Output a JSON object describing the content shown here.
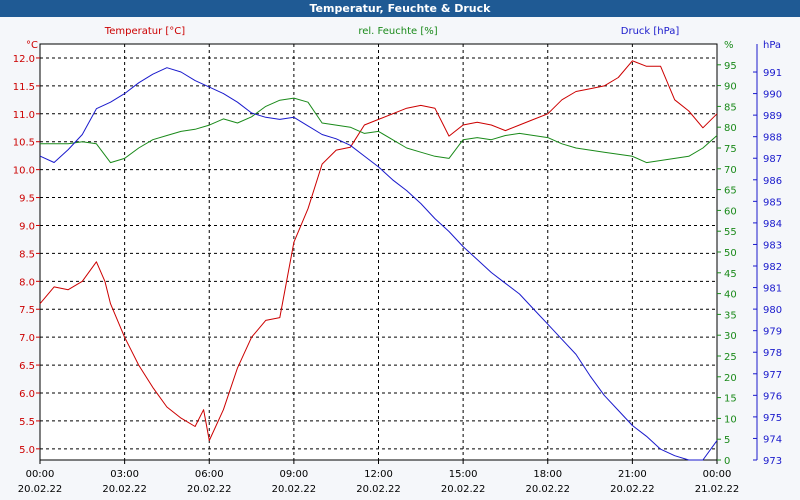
{
  "window": {
    "title": "Temperatur, Feuchte & Druck"
  },
  "colors": {
    "temperature": "#cc0000",
    "humidity": "#1a8a1a",
    "pressure": "#1a1acc",
    "grid": "#000000",
    "background": "#ffffff",
    "titlebar": "#1f5a94"
  },
  "chart_data": {
    "type": "line",
    "title": "Temperatur, Feuchte & Druck",
    "grid": true,
    "x_ticks": [
      {
        "time": "00:00",
        "date": "20.02.22"
      },
      {
        "time": "03:00",
        "date": "20.02.22"
      },
      {
        "time": "06:00",
        "date": "20.02.22"
      },
      {
        "time": "09:00",
        "date": "20.02.22"
      },
      {
        "time": "12:00",
        "date": "20.02.22"
      },
      {
        "time": "15:00",
        "date": "20.02.22"
      },
      {
        "time": "18:00",
        "date": "20.02.22"
      },
      {
        "time": "21:00",
        "date": "20.02.22"
      },
      {
        "time": "00:00",
        "date": "21.02.22"
      }
    ],
    "x_unit": "hours",
    "x_range": [
      0,
      24
    ],
    "axes": {
      "left": {
        "label": "Temperatur [°C]",
        "unit": "°C",
        "range": [
          4.8,
          12.25
        ],
        "ticks": [
          "5.0",
          "5.5",
          "6.0",
          "6.5",
          "7.0",
          "7.5",
          "8.0",
          "8.5",
          "9.0",
          "9.5",
          "10.0",
          "10.5",
          "11.0",
          "11.5",
          "12.0"
        ]
      },
      "middle": {
        "label": "rel. Feuchte [%]",
        "unit": "%",
        "range": [
          0,
          100
        ],
        "ticks": [
          "0",
          "5",
          "10",
          "15",
          "20",
          "25",
          "30",
          "35",
          "40",
          "45",
          "50",
          "55",
          "60",
          "65",
          "70",
          "75",
          "80",
          "85",
          "90",
          "95"
        ]
      },
      "right": {
        "label": "Druck [hPa]",
        "unit": "hPa",
        "range": [
          973,
          992.3
        ],
        "ticks": [
          "973",
          "974",
          "975",
          "976",
          "977",
          "978",
          "979",
          "980",
          "981",
          "982",
          "983",
          "984",
          "985",
          "986",
          "987",
          "988",
          "989",
          "990",
          "991"
        ]
      }
    },
    "series": [
      {
        "name": "Temperatur [°C]",
        "axis": "left",
        "x": [
          0,
          0.5,
          1,
          1.5,
          2,
          2.3,
          2.5,
          3,
          3.5,
          4,
          4.5,
          5,
          5.5,
          5.8,
          6,
          6.5,
          7,
          7.5,
          8,
          8.5,
          9,
          9.5,
          10,
          10.5,
          11,
          11.5,
          12,
          12.5,
          13,
          13.5,
          14,
          14.3,
          14.5,
          15,
          15.5,
          16,
          16.5,
          17,
          17.5,
          18,
          18.5,
          19,
          19.5,
          20,
          20.5,
          21,
          21.5,
          22,
          22.5,
          23,
          23.5,
          24
        ],
        "values": [
          7.6,
          7.9,
          7.85,
          8.0,
          8.35,
          8.0,
          7.6,
          7.0,
          6.5,
          6.1,
          5.75,
          5.55,
          5.4,
          5.7,
          5.15,
          5.7,
          6.45,
          7.0,
          7.3,
          7.35,
          8.7,
          9.3,
          10.1,
          10.35,
          10.4,
          10.8,
          10.9,
          11.0,
          11.1,
          11.15,
          11.1,
          10.8,
          10.6,
          10.8,
          10.85,
          10.8,
          10.7,
          10.8,
          10.9,
          11.0,
          11.25,
          11.4,
          11.45,
          11.5,
          11.65,
          11.95,
          11.85,
          11.85,
          11.25,
          11.05,
          10.75,
          11.0
        ]
      },
      {
        "name": "rel. Feuchte [%]",
        "axis": "middle",
        "x": [
          0,
          0.5,
          1,
          1.5,
          2,
          2.5,
          3,
          3.5,
          4,
          4.5,
          5,
          5.5,
          6,
          6.5,
          7,
          7.5,
          8,
          8.5,
          9,
          9.5,
          10,
          10.5,
          11,
          11.5,
          12,
          12.5,
          13,
          13.5,
          14,
          14.5,
          15,
          15.5,
          16,
          16.5,
          17,
          17.5,
          18,
          18.5,
          19,
          19.5,
          20,
          20.5,
          21,
          21.5,
          22,
          22.5,
          23,
          23.5,
          24
        ],
        "values": [
          76,
          76,
          76,
          76.5,
          76,
          71.5,
          72.5,
          75,
          77,
          78,
          79,
          79.5,
          80.5,
          82,
          81,
          82.5,
          85,
          86.5,
          87,
          86,
          81,
          80.5,
          80,
          78.5,
          79,
          77,
          75,
          74,
          73,
          72.5,
          77,
          77.5,
          77,
          78,
          78.5,
          78,
          77.5,
          76,
          75,
          74.5,
          74,
          73.5,
          73,
          71.5,
          72,
          72.5,
          73,
          75,
          78
        ]
      },
      {
        "name": "Druck [hPa]",
        "axis": "right",
        "x": [
          0,
          0.5,
          1,
          1.5,
          2,
          2.5,
          3,
          3.5,
          4,
          4.5,
          5,
          5.5,
          6,
          6.5,
          7,
          7.5,
          8,
          8.5,
          9,
          9.5,
          10,
          10.5,
          11,
          11.5,
          12,
          12.5,
          13,
          13.5,
          14,
          14.5,
          15,
          15.5,
          16,
          16.5,
          17,
          17.5,
          18,
          18.5,
          19,
          19.5,
          20,
          20.5,
          21,
          21.5,
          22,
          22.5,
          23,
          23.5,
          24
        ],
        "values": [
          987.1,
          986.8,
          987.4,
          988.1,
          989.3,
          989.6,
          990.0,
          990.5,
          990.9,
          991.2,
          991.0,
          990.6,
          990.3,
          990.0,
          989.6,
          989.1,
          988.9,
          988.8,
          988.9,
          988.5,
          988.1,
          987.9,
          987.6,
          987.1,
          986.6,
          986.0,
          985.5,
          984.9,
          984.2,
          983.6,
          982.9,
          982.3,
          981.7,
          981.2,
          980.7,
          980.0,
          979.3,
          978.6,
          977.9,
          976.9,
          976.0,
          975.3,
          974.6,
          974.1,
          973.5,
          973.2,
          973.0,
          973.0,
          973.9
        ]
      }
    ]
  }
}
